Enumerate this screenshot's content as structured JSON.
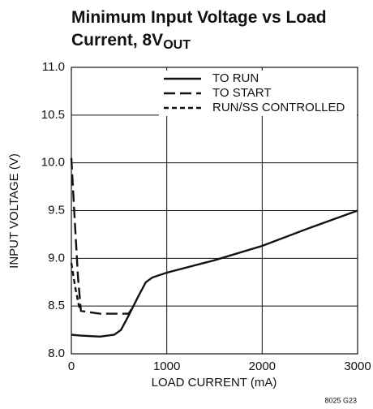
{
  "chart_data": {
    "type": "line",
    "title": [
      "Minimum Input Voltage vs Load",
      "Current, 8V"
    ],
    "title_subscript": "OUT",
    "x_label": "LOAD CURRENT (mA)",
    "y_label": "INPUT VOLTAGE (V)",
    "note": "8025 G23",
    "xlim": [
      0,
      3000
    ],
    "xticks": [
      0,
      1000,
      2000,
      3000
    ],
    "ylim": [
      8,
      11
    ],
    "yticks": [
      {
        "value": 8,
        "label": "8.0"
      },
      8.5,
      {
        "value": 9,
        "label": "9.0"
      },
      9.5,
      {
        "value": 10,
        "label": "10.0"
      },
      10.5,
      {
        "value": 11,
        "label": "11.0"
      }
    ],
    "grid": true,
    "legend": "upper right",
    "series": [
      {
        "name": "TO RUN",
        "color": "#111111",
        "style": "solid",
        "x": [
          0,
          100,
          300,
          450,
          520,
          600,
          700,
          780,
          850,
          1000,
          1500,
          2000,
          2500,
          3000
        ],
        "values": [
          8.2,
          8.19,
          8.18,
          8.2,
          8.25,
          8.4,
          8.6,
          8.75,
          8.8,
          8.85,
          8.98,
          9.13,
          9.32,
          9.5
        ]
      },
      {
        "name": "TO START",
        "color": "#111111",
        "style": "long-dash",
        "x": [
          0,
          30,
          70,
          100,
          300,
          600,
          650
        ],
        "values": [
          10.05,
          9.5,
          8.8,
          8.45,
          8.42,
          8.42,
          8.5
        ]
      },
      {
        "name": "RUN/SS CONTROLLED",
        "color": "#111111",
        "style": "short-dash",
        "x": [
          0,
          40,
          80,
          100
        ],
        "values": [
          8.95,
          8.7,
          8.5,
          8.45
        ]
      }
    ]
  }
}
